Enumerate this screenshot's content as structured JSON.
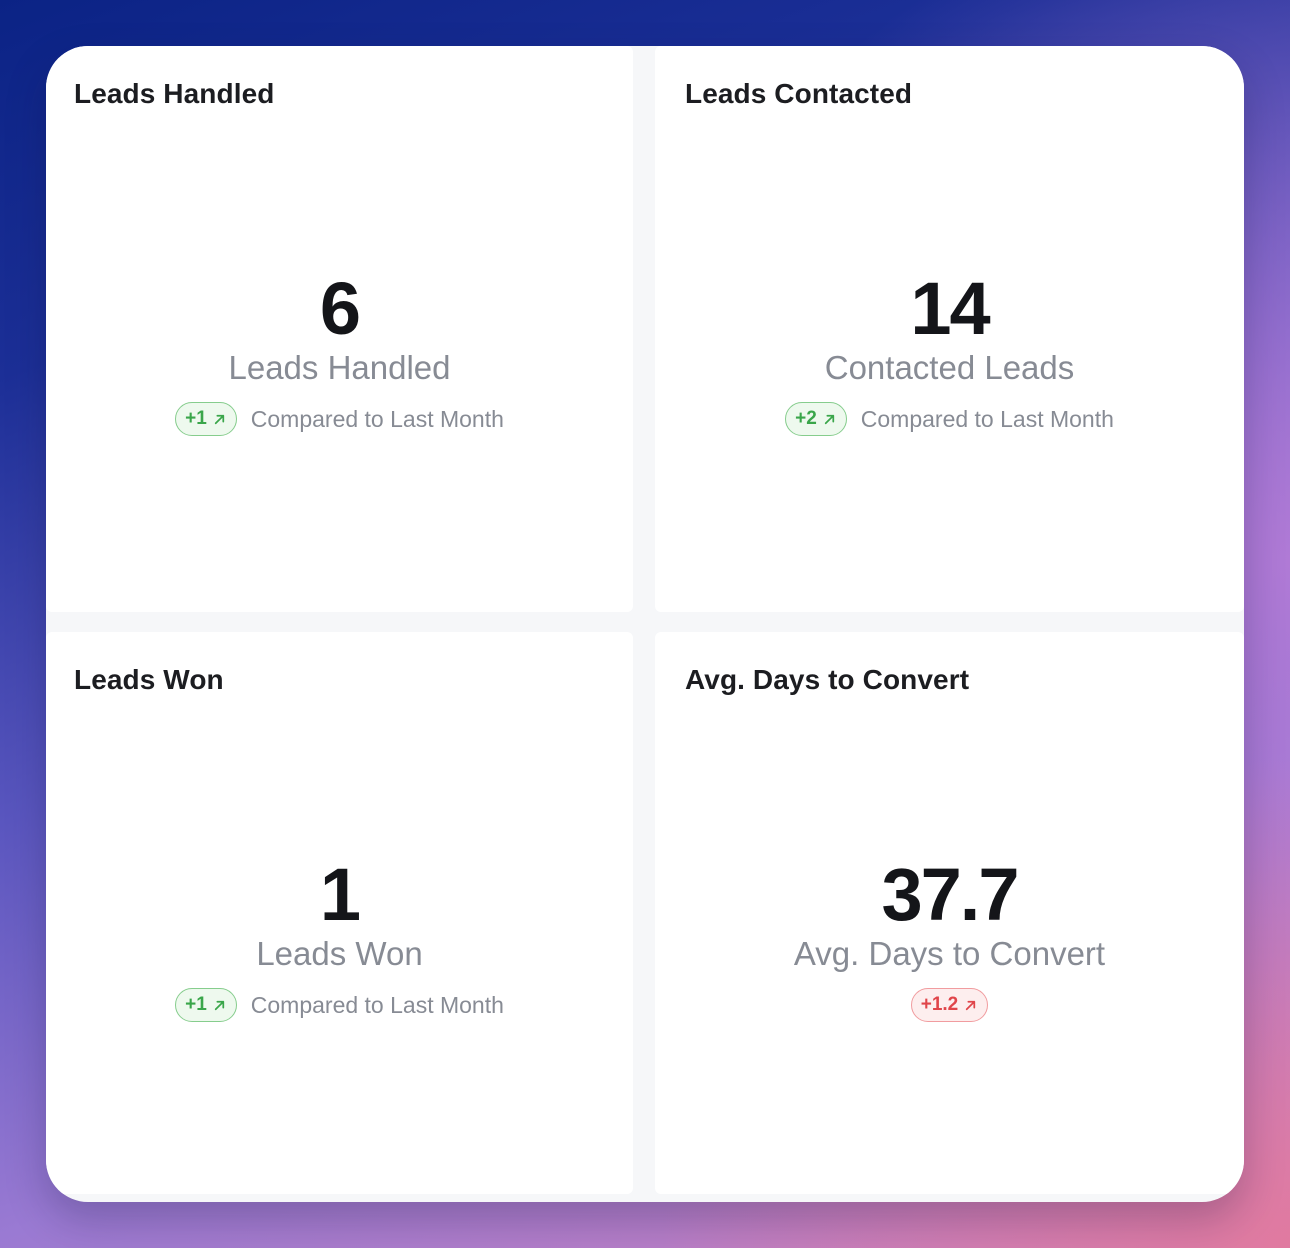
{
  "cards": [
    {
      "title": "Leads Handled",
      "value": "6",
      "label": "Leads Handled",
      "badge": "+1",
      "badge_tone": "positive",
      "compare": "Compared to Last Month"
    },
    {
      "title": "Leads Contacted",
      "value": "14",
      "label": "Contacted Leads",
      "badge": "+2",
      "badge_tone": "positive",
      "compare": "Compared to Last Month"
    },
    {
      "title": "Leads Won",
      "value": "1",
      "label": "Leads Won",
      "badge": "+1",
      "badge_tone": "positive",
      "compare": "Compared to Last Month"
    },
    {
      "title": "Avg. Days to Convert",
      "value": "37.7",
      "label": "Avg. Days to Convert",
      "badge": "+1.2",
      "badge_tone": "negative",
      "compare": ""
    }
  ],
  "icons": {
    "badge_arrow": "arrow-up-right-icon"
  },
  "colors": {
    "positive": "#3aa64a",
    "negative": "#e0454a"
  }
}
